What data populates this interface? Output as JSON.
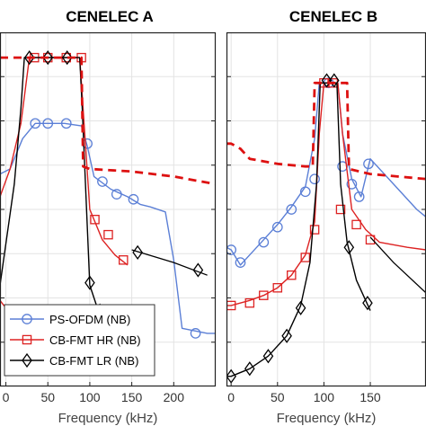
{
  "chart_data": [
    {
      "type": "line",
      "title": "CENELEC A",
      "xlabel": "Frequency (kHz)",
      "ylabel": "",
      "xlim": [
        -7,
        250
      ],
      "ylim": [
        -13,
        1
      ],
      "xticks": [
        0,
        50,
        100,
        150,
        200
      ],
      "xticklabels": [
        "0",
        "50",
        "100",
        "150",
        "200"
      ],
      "grid": true,
      "series": [
        {
          "name": "PS-OFDM (NB)",
          "color": "#5b7fd6",
          "marker": "circle",
          "x": [
            -7,
            5,
            20,
            35,
            50,
            70,
            90,
            97,
            105,
            125,
            145,
            160,
            172,
            190,
            200,
            210,
            240,
            250
          ],
          "y": [
            -4.6,
            -4.4,
            -3.2,
            -2.6,
            -2.6,
            -2.6,
            -2.7,
            -3.5,
            -4.7,
            -5.2,
            -5.5,
            -5.8,
            -5.9,
            -6.1,
            -8,
            -10.7,
            -10.9,
            -10.9
          ],
          "marker_x": [
            35,
            50,
            72,
            97,
            115,
            132,
            152,
            226
          ],
          "marker_y": [
            -2.6,
            -2.6,
            -2.6,
            -3.4,
            -4.9,
            -5.4,
            -5.6,
            -10.9
          ]
        },
        {
          "name": "CB-FMT HR (NB)",
          "color": "#dd2222",
          "marker": "square",
          "x": [
            -7,
            5,
            18,
            28,
            50,
            75,
            88,
            94,
            100,
            115,
            130,
            145
          ],
          "y": [
            -5.5,
            -4.4,
            -2.6,
            0,
            0,
            0,
            0,
            -3,
            -6,
            -7.2,
            -7.8,
            -8.2
          ],
          "marker_x": [
            34,
            50,
            72,
            90,
            106,
            122,
            140
          ],
          "marker_y": [
            0,
            0,
            0,
            0,
            -6.4,
            -7.0,
            -8.0
          ],
          "tail": [
            [
              -7,
              -9.6
            ],
            [
              0,
              -9.9
            ]
          ]
        },
        {
          "name": "CB-FMT LR (NB)",
          "color": "#000000",
          "marker": "diamond",
          "x": [
            -7,
            10,
            18,
            22,
            28,
            50,
            80,
            88,
            91,
            100,
            110,
            125,
            140,
            150
          ],
          "y": [
            -9,
            -5,
            -2,
            0,
            0,
            0,
            0,
            0,
            -2,
            -9,
            -10,
            -10.6,
            -11.4,
            -11.8
          ],
          "marker_x": [
            28,
            50,
            73,
            100,
            112,
            128,
            142
          ],
          "marker_y": [
            0,
            0,
            0,
            -8.9,
            -10,
            -10.7,
            -11.5
          ],
          "extra": {
            "x": [
              150,
              200,
              240
            ],
            "y": [
              -7.6,
              -8.1,
              -8.6
            ],
            "marker_x": [
              157,
              229
            ],
            "marker_y": [
              -7.7,
              -8.4
            ]
          }
        },
        {
          "name": "",
          "color": "#dd1111",
          "style": "dashed",
          "x": [
            -7,
            5,
            18,
            20,
            90,
            92,
            100,
            150,
            200,
            250
          ],
          "y": [
            0,
            0,
            0,
            0,
            0,
            -4.3,
            -4.4,
            -4.5,
            -4.7,
            -5
          ],
          "marker_x": [],
          "marker_y": []
        }
      ],
      "legend": {
        "location": "bottom-left",
        "entries": [
          "PS-OFDM (NB)",
          "CB-FMT HR (NB)",
          "CB-FMT LR (NB)"
        ]
      }
    },
    {
      "type": "line",
      "title": "CENELEC B",
      "xlabel": "Frequency (kHz)",
      "ylabel": "",
      "xlim": [
        -5,
        210
      ],
      "ylim": [
        -13,
        1
      ],
      "xticks": [
        0,
        50,
        100,
        150
      ],
      "xticklabels": [
        "0",
        "50",
        "100",
        "150"
      ],
      "grid": true,
      "series": [
        {
          "name": "PS-OFDM (NB)",
          "color": "#5b7fd6",
          "marker": "circle",
          "x": [
            -5,
            0,
            10,
            20,
            35,
            50,
            65,
            80,
            90,
            95,
            100,
            110,
            115,
            120,
            130,
            140,
            150,
            175,
            200,
            210
          ],
          "y": [
            -7.5,
            -7.6,
            -8.2,
            -7.8,
            -7.2,
            -6.6,
            -5.9,
            -5.1,
            -3.2,
            -1,
            -1,
            -1,
            -1,
            -3,
            -4.8,
            -5.5,
            -4,
            -5,
            -6,
            -6.3
          ],
          "marker_x": [
            0,
            10,
            35,
            50,
            65,
            80,
            90,
            105,
            120,
            130,
            138,
            148
          ],
          "marker_y": [
            -7.6,
            -8.1,
            -7.3,
            -6.7,
            -6.0,
            -5.3,
            -4.8,
            -1.0,
            -4.3,
            -5.0,
            -5.5,
            -4.2
          ]
        },
        {
          "name": "CB-FMT HR (NB)",
          "color": "#dd2222",
          "marker": "square",
          "x": [
            -5,
            0,
            20,
            35,
            50,
            65,
            80,
            90,
            95,
            100,
            110,
            115,
            120,
            130,
            145,
            160,
            190,
            210
          ],
          "y": [
            -9.8,
            -9.8,
            -9.6,
            -9.4,
            -9.1,
            -8.6,
            -7.8,
            -6.5,
            -3,
            -1,
            -1,
            -1,
            -3,
            -6,
            -6.8,
            -7.3,
            -7.5,
            -7.6
          ],
          "marker_x": [
            0,
            20,
            35,
            50,
            65,
            80,
            90,
            100,
            110,
            118,
            135,
            150
          ],
          "marker_y": [
            -9.8,
            -9.7,
            -9.4,
            -9.1,
            -8.6,
            -7.9,
            -6.8,
            -1,
            -1,
            -6.0,
            -6.6,
            -7.2
          ]
        },
        {
          "name": "CB-FMT LR (NB)",
          "color": "#000000",
          "marker": "diamond",
          "x": [
            -5,
            0,
            20,
            40,
            60,
            75,
            85,
            92,
            96,
            100,
            110,
            114,
            118,
            125,
            135,
            150
          ],
          "y": [
            -12.6,
            -12.6,
            -12.3,
            -11.8,
            -11,
            -9.8,
            -8.1,
            -5,
            -1,
            -1,
            -1,
            -1,
            -5,
            -7.3,
            -8.8,
            -10
          ],
          "marker_x": [
            0,
            20,
            40,
            60,
            75,
            103,
            111,
            127,
            147
          ],
          "marker_y": [
            -12.6,
            -12.3,
            -11.8,
            -11.0,
            -9.9,
            -0.9,
            -0.9,
            -7.5,
            -9.7
          ],
          "extra": {
            "x": [
              150,
              175,
              210
            ],
            "y": [
              -7.1,
              -8.1,
              -9.3
            ],
            "marker_x": [],
            "marker_y": []
          }
        },
        {
          "name": "",
          "color": "#dd1111",
          "style": "dashed",
          "x": [
            -5,
            0,
            10,
            20,
            50,
            80,
            88,
            90,
            125,
            127,
            150,
            210
          ],
          "y": [
            -3.4,
            -3.4,
            -3.6,
            -4,
            -4.2,
            -4.3,
            -4.3,
            -1,
            -1,
            -4.4,
            -4.6,
            -4.8
          ],
          "marker_x": [],
          "marker_y": []
        }
      ]
    }
  ]
}
